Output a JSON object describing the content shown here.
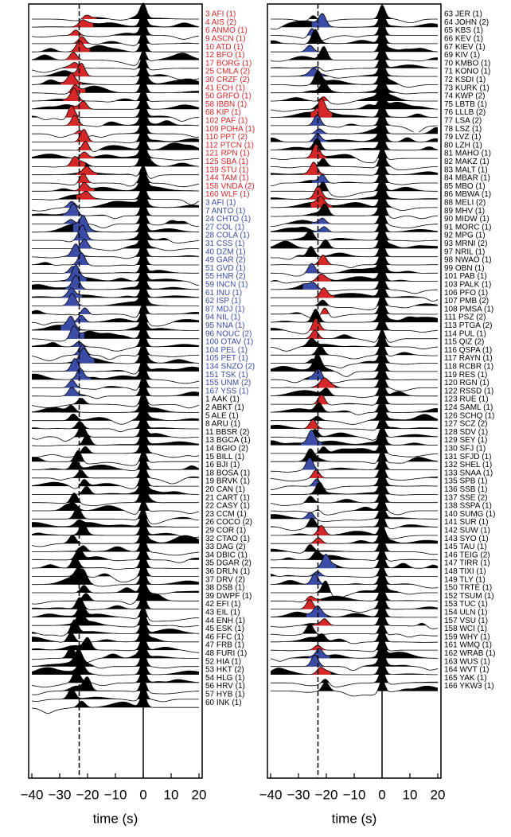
{
  "chart_data": [
    {
      "type": "seismogram",
      "xlim": [
        -40,
        20
      ],
      "xticks": [
        {
          "value": -40,
          "label": "−40"
        },
        {
          "value": -30,
          "label": "−30"
        },
        {
          "value": -20,
          "label": "−20"
        },
        {
          "value": -10,
          "label": "−10"
        },
        0,
        10,
        20
      ],
      "xlabel": "time (s)",
      "reference_times": [
        -23,
        0
      ],
      "groups": [
        {
          "color": "#d62728",
          "stations": [
            "3 AFI (1)",
            "4 AIS (2)",
            "6 ANMO (1)",
            "9 ASCN (1)",
            "10 ATD (1)",
            "12 BFO (1)",
            "17 BORG (1)",
            "25 CMLA (2)",
            "30 CRZF (2)",
            "41 ECH (1)",
            "50 GRFO (1)",
            "58 IBBN (1)",
            "68 KIP (1)",
            "102 PAF (1)",
            "109 POHA (1)",
            "110 PPT (2)",
            "112 PTCN (1)",
            "121 RPN (1)",
            "125 SBA (1)",
            "139 STU (1)",
            "144 TAM (1)",
            "156 VNDA (2)",
            "160 WLF (1)"
          ]
        },
        {
          "color": "#3a4ca6",
          "stations": [
            "3 AFI (1)",
            "7 ANTO (1)",
            "24 CHTO (1)",
            "27 COL (1)",
            "28 COLA (1)",
            "31 CSS (1)",
            "40 DZM (1)",
            "49 GAR (2)",
            "51 GVD (1)",
            "55 HNR (2)",
            "59 INCN (1)",
            "61 INU (1)",
            "62 ISP (1)",
            "87 MDJ (1)",
            "94 NIL (1)",
            "95 NNA (1)",
            "96 NOUC (2)",
            "100 OTAV (1)",
            "104 PEL (1)",
            "105 PET (1)",
            "134 SNZO (2)",
            "151 TSK (1)",
            "155 UNM (2)",
            "167 YSS (1)"
          ]
        },
        {
          "color": "#000000",
          "stations": [
            "1 AAK (1)",
            "2 ABKT (1)",
            "5 ALE (1)",
            "8 ARU (1)",
            "11 BBSR (2)",
            "13 BGCA (1)",
            "14 BGIO (2)",
            "15 BILL (1)",
            "16 BJI (1)",
            "18 BOSA (1)",
            "19 BRVK (1)",
            "20 CAN (1)",
            "21 CART (1)",
            "22 CASY (1)",
            "23 CCM (1)",
            "26 COCO (2)",
            "29 COR (1)",
            "32 CTAO (1)",
            "33 DAG (2)",
            "34 DBIC (1)",
            "35 DGAR (2)",
            "36 DRLN (1)",
            "37 DRV (2)",
            "38 DSB (1)",
            "39 DWPF (1)",
            "42 EFI (1)",
            "43 EIL (1)",
            "44 ENH (1)",
            "45 ESK (1)",
            "46 FFC (1)",
            "47 FRB (1)",
            "48 FURI (1)",
            "52 HIA (1)",
            "53 HKT (2)",
            "54 HLG (1)",
            "56 HRV (1)",
            "57 HYB (1)",
            "60 INK (1)"
          ]
        }
      ]
    },
    {
      "type": "seismogram",
      "xlim": [
        -40,
        20
      ],
      "xticks": [
        {
          "value": -40,
          "label": "−40"
        },
        {
          "value": -30,
          "label": "−30"
        },
        {
          "value": -20,
          "label": "−20"
        },
        {
          "value": -10,
          "label": "−10"
        },
        0,
        10,
        20
      ],
      "xlabel": "time (s)",
      "reference_times": [
        -23,
        0
      ],
      "pulse_colors": [
        "#d62728",
        "#3a4ca6",
        "#000000"
      ],
      "groups": [
        {
          "color": "#000000",
          "stations": [
            "63 JER (1)",
            "64 JOHN (2)",
            "65 KBS (1)",
            "66 KEV (1)",
            "67 KIEV (1)",
            "69 KIV (1)",
            "70 KMBO (1)",
            "71 KONO (1)",
            "72 KSDI (1)",
            "73 KURK (1)",
            "74 KWP (2)",
            "75 LBTB (1)",
            "76 LLLB (2)",
            "77 LSA (2)",
            "78 LSZ (1)",
            "79 LVZ (1)",
            "80 LZH (1)",
            "81 MAHO (1)",
            "82 MAKZ (1)",
            "83 MALT (1)",
            "84 MBAR (1)",
            "85 MBO (1)",
            "86 MBWA (1)",
            "88 MELI (2)",
            "89 MHV (1)",
            "90 MIDW (1)",
            "91 MORC (1)",
            "92 MPG (1)",
            "93 MRNI (2)",
            "97 NRIL (1)",
            "98 NWAO (1)",
            "99 OBN (1)",
            "101 PAB (1)",
            "103 PALK (1)",
            "106 PFO (1)",
            "107 PMB (2)",
            "108 PMSA (1)",
            "111 PSZ (2)",
            "113 PTGA (2)",
            "114 PUL (1)",
            "115 QIZ (2)",
            "116 QSPA (1)",
            "117 RAYN (1)",
            "118 RCBR (1)",
            "119 RES (1)",
            "120 RGN (1)",
            "122 RSSD (1)",
            "123 RUE (1)",
            "124 SAML (1)",
            "126 SCHQ (1)",
            "127 SCZ (2)",
            "128 SDV (1)",
            "129 SEY (1)",
            "130 SFJ (1)",
            "131 SFJD (1)",
            "132 SHEL (1)",
            "133 SNAA (1)",
            "135 SPB (1)",
            "136 SSB (1)",
            "137 SSE (2)",
            "138 SSPA (1)",
            "140 SUMG (1)",
            "141 SUR (1)",
            "142 SUW (1)",
            "143 SYO (1)",
            "145 TAU (1)",
            "146 TEIG (2)",
            "147 TIRR (1)",
            "148 TIXI (1)",
            "149 TLY (1)",
            "150 TRTE (1)",
            "152 TSUM (1)",
            "153 TUC (1)",
            "154 ULN (1)",
            "157 VSU (1)",
            "158 WCI (1)",
            "159 WHY (1)",
            "161 WMQ (1)",
            "162 WRAB (1)",
            "163 WUS (1)",
            "164 WVT (1)",
            "165 YAK (1)",
            "166 YKW3 (1)"
          ]
        }
      ]
    }
  ]
}
